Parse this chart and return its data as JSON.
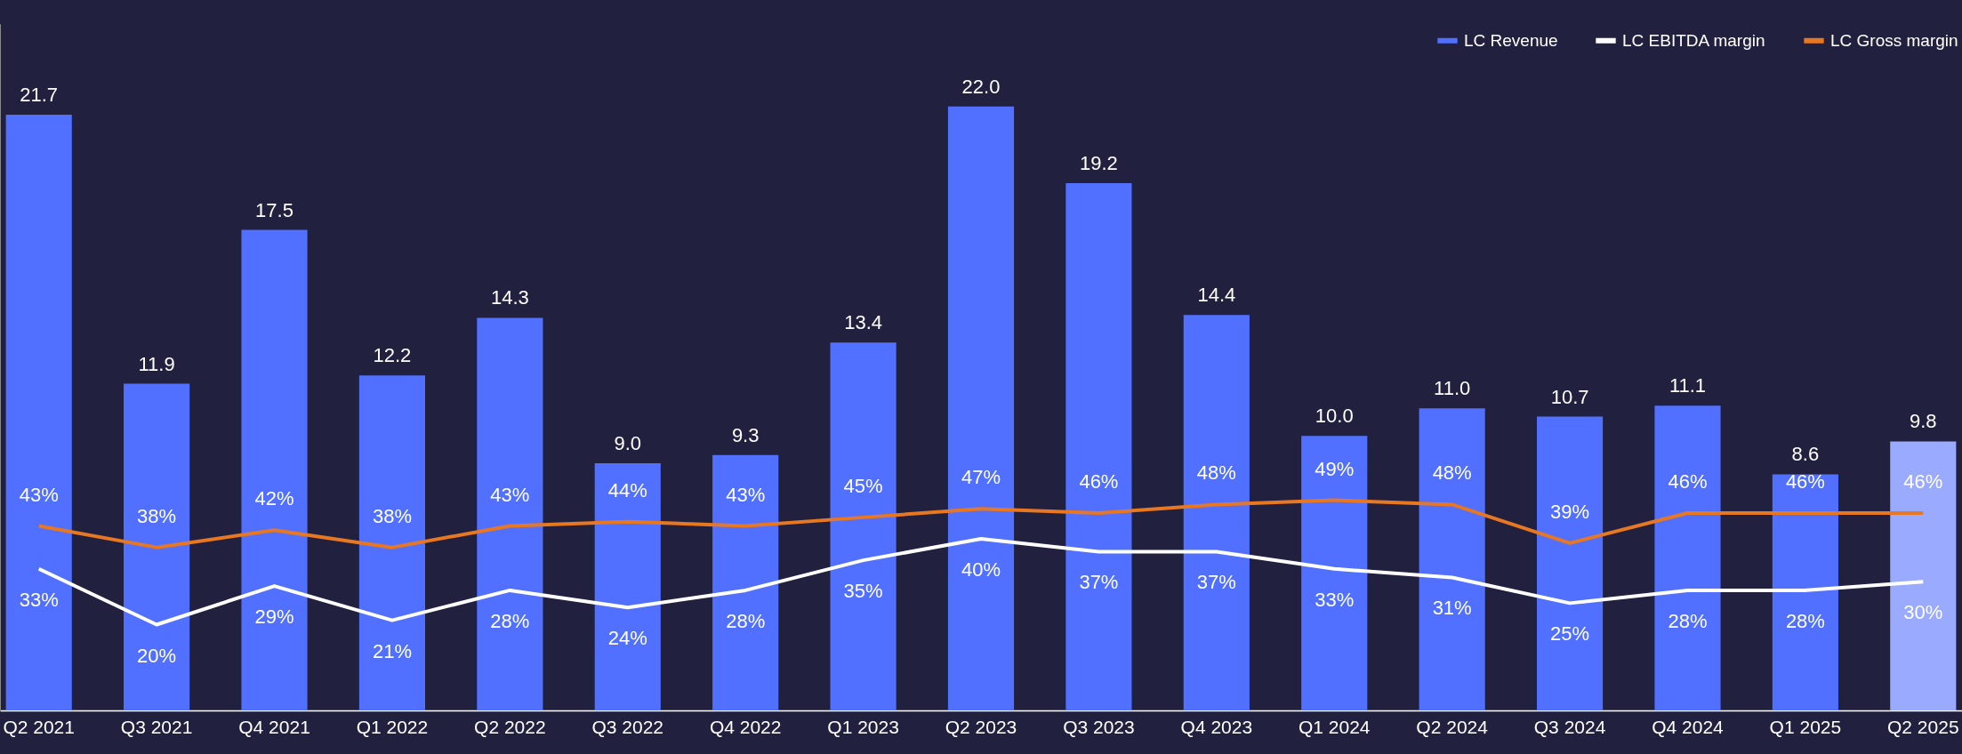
{
  "chart_data": {
    "type": "bar",
    "categories": [
      "Q2 2021",
      "Q3 2021",
      "Q4 2021",
      "Q1 2022",
      "Q2 2022",
      "Q3 2022",
      "Q4 2022",
      "Q1 2023",
      "Q2 2023",
      "Q3 2023",
      "Q4 2023",
      "Q1 2024",
      "Q2 2024",
      "Q3 2024",
      "Q4 2024",
      "Q1 2025",
      "Q2 2025"
    ],
    "series": [
      {
        "name": "LC Revenue",
        "color": "#5170ff",
        "colors": [
          "#5170ff",
          "#5170ff",
          "#5170ff",
          "#5170ff",
          "#5170ff",
          "#5170ff",
          "#5170ff",
          "#5170ff",
          "#5170ff",
          "#5170ff",
          "#5170ff",
          "#5170ff",
          "#5170ff",
          "#5170ff",
          "#5170ff",
          "#5170ff",
          "#9aabff"
        ],
        "values": [
          21.7,
          11.9,
          17.5,
          12.2,
          14.3,
          9.0,
          9.3,
          13.4,
          22.0,
          19.2,
          14.4,
          10.0,
          11.0,
          10.7,
          11.1,
          8.6,
          9.8
        ],
        "value_labels": [
          "21.7",
          "11.9",
          "17.5",
          "12.2",
          "14.3",
          "9.0",
          "9.3",
          "13.4",
          "22.0",
          "19.2",
          "14.4",
          "10.0",
          "11.0",
          "10.7",
          "11.1",
          "8.6",
          "9.8"
        ]
      },
      {
        "name": "LC EBITDA margin",
        "type": "line",
        "axis": "y2",
        "color": "#ffffff",
        "values": [
          33,
          20,
          29,
          21,
          28,
          24,
          28,
          35,
          40,
          37,
          37,
          33,
          31,
          25,
          28,
          28,
          30
        ],
        "value_labels": [
          "33%",
          "20%",
          "29%",
          "21%",
          "28%",
          "24%",
          "28%",
          "35%",
          "40%",
          "37%",
          "37%",
          "33%",
          "31%",
          "25%",
          "28%",
          "28%",
          "30%"
        ]
      },
      {
        "name": "LC Gross margin",
        "type": "line",
        "axis": "y2",
        "color": "#e87722",
        "values": [
          43,
          38,
          42,
          38,
          43,
          44,
          43,
          45,
          47,
          46,
          48,
          49,
          48,
          39,
          46,
          46,
          46
        ],
        "value_labels": [
          "43%",
          "38%",
          "42%",
          "38%",
          "43%",
          "44%",
          "43%",
          "45%",
          "47%",
          "46%",
          "48%",
          "49%",
          "48%",
          "39%",
          "46%",
          "46%",
          "46%"
        ]
      }
    ],
    "ylim": [
      0,
      25
    ],
    "y2lim": [
      0,
      160
    ],
    "tick_labels": "x",
    "grid": false,
    "legend": "top right",
    "marker": "none",
    "line_style": "solid"
  }
}
